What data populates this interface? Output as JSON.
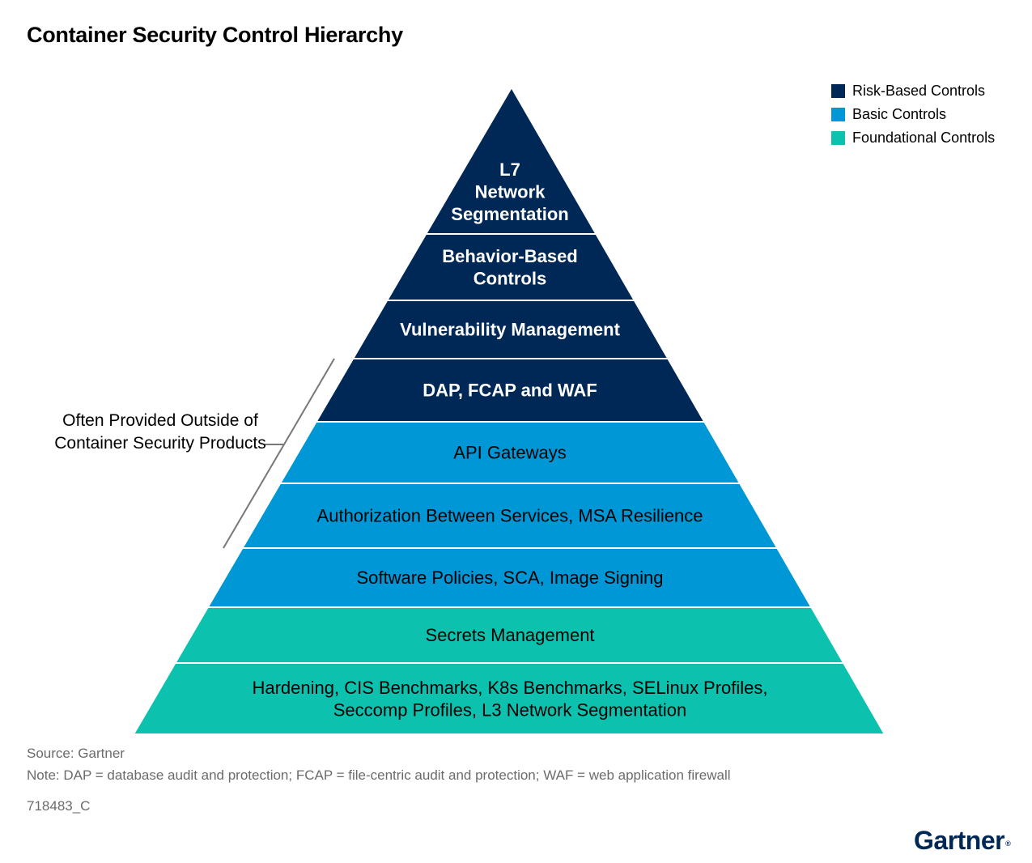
{
  "title": "Container Security Control Hierarchy",
  "legend": [
    {
      "label": "Risk-Based Controls",
      "color": "#002856"
    },
    {
      "label": "Basic Controls",
      "color": "#0097d6"
    },
    {
      "label": "Foundational Controls",
      "color": "#0cc2ae"
    }
  ],
  "pyramid": {
    "layers": [
      {
        "lines": [
          "L7",
          "Network",
          "Segmentation"
        ],
        "tier": "Risk-Based Controls",
        "bold": true
      },
      {
        "lines": [
          "Behavior-Based",
          "Controls"
        ],
        "tier": "Risk-Based Controls",
        "bold": true
      },
      {
        "lines": [
          "Vulnerability Management"
        ],
        "tier": "Risk-Based Controls",
        "bold": true
      },
      {
        "lines": [
          "DAP, FCAP and WAF"
        ],
        "tier": "Risk-Based Controls",
        "bold": true
      },
      {
        "lines": [
          "API Gateways"
        ],
        "tier": "Basic Controls",
        "bold": false
      },
      {
        "lines": [
          "Authorization Between Services, MSA Resilience"
        ],
        "tier": "Basic Controls",
        "bold": false
      },
      {
        "lines": [
          "Software Policies, SCA, Image Signing"
        ],
        "tier": "Basic Controls",
        "bold": false
      },
      {
        "lines": [
          "Secrets Management"
        ],
        "tier": "Foundational Controls",
        "bold": false
      },
      {
        "lines": [
          "Hardening, CIS Benchmarks, K8s Benchmarks, SELinux Profiles,",
          "Seccomp Profiles, L3 Network Segmentation"
        ],
        "tier": "Foundational Controls",
        "bold": false
      }
    ]
  },
  "side_note": "Often Provided Outside of Container Security Products",
  "footer": {
    "source": "Source: Gartner",
    "note": "Note: DAP = database audit and protection; FCAP = file-centric audit and protection; WAF = web application firewall",
    "doc_id": "718483_C"
  },
  "brand": {
    "name": "Gartner",
    "mark": "®"
  }
}
